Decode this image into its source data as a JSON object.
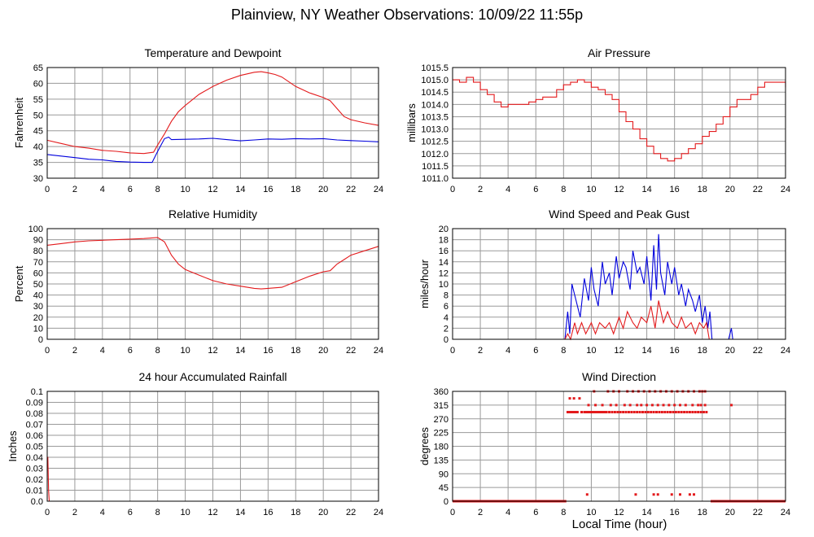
{
  "page": {
    "title": "Plainview, NY Weather Observations: 10/09/22 11:55p",
    "shared_xlabel": "Local Time (hour)"
  },
  "colors": {
    "red": "#e31a1c",
    "blue": "#0000dd",
    "grid": "#9a9a9a",
    "frame": "#000000"
  },
  "chart_data": [
    {
      "id": "temp",
      "type": "line",
      "title": "Temperature and Dewpoint",
      "xlabel": "",
      "ylabel": "Fahrenheit",
      "xlim": [
        0,
        24
      ],
      "ylim": [
        30,
        65
      ],
      "xticks": [
        0,
        2,
        4,
        6,
        8,
        10,
        12,
        14,
        16,
        18,
        20,
        22,
        24
      ],
      "yticks": [
        30,
        35,
        40,
        45,
        50,
        55,
        60,
        65
      ],
      "grid": true,
      "series": [
        {
          "color": "red",
          "x": [
            0,
            1,
            2,
            3,
            4,
            5,
            6,
            7,
            7.7,
            8,
            8.5,
            9,
            9.5,
            10,
            11,
            12,
            13,
            14,
            15,
            15.5,
            16,
            16.5,
            17,
            18,
            19,
            20,
            20.5,
            21,
            21.5,
            22,
            23,
            24
          ],
          "y": [
            42,
            41,
            40,
            39.5,
            38.8,
            38.5,
            38,
            37.8,
            38.2,
            40.5,
            44,
            48,
            51,
            53,
            56.5,
            59,
            61,
            62.5,
            63.5,
            63.7,
            63.3,
            62.8,
            62,
            59,
            57,
            55.5,
            54.5,
            52,
            49.5,
            48.5,
            47.5,
            46.7
          ]
        },
        {
          "color": "blue",
          "x": [
            0,
            1,
            2,
            3,
            4,
            5,
            6,
            7,
            7.6,
            8,
            8.5,
            8.8,
            9,
            10,
            11,
            12,
            13,
            14,
            15,
            16,
            17,
            18,
            19,
            20,
            21,
            22,
            23,
            24
          ],
          "y": [
            37.5,
            37,
            36.5,
            36,
            35.8,
            35.3,
            35.1,
            35,
            35,
            38.5,
            42.5,
            43,
            42.2,
            42.3,
            42.4,
            42.6,
            42.2,
            41.8,
            42.1,
            42.4,
            42.3,
            42.5,
            42.4,
            42.5,
            42.1,
            41.9,
            41.7,
            41.5
          ]
        }
      ]
    },
    {
      "id": "pressure",
      "type": "line",
      "title": "Air Pressure",
      "xlabel": "",
      "ylabel": "millibars",
      "xlim": [
        0,
        24
      ],
      "ylim": [
        1011.0,
        1015.5
      ],
      "xticks": [
        0,
        2,
        4,
        6,
        8,
        10,
        12,
        14,
        16,
        18,
        20,
        22,
        24
      ],
      "yticks": [
        1011.0,
        1011.5,
        1012.0,
        1012.5,
        1013.0,
        1013.5,
        1014.0,
        1014.5,
        1015.0,
        1015.5
      ],
      "tick_labels": [
        "1011.0",
        "1011.5",
        "1012.0",
        "1012.5",
        "1013.0",
        "1013.5",
        "1014.0",
        "1014.5",
        "1015.0",
        "1015.5"
      ],
      "grid": true,
      "series": [
        {
          "color": "red",
          "step": true,
          "x": [
            0,
            0.5,
            1,
            1.5,
            2,
            2.5,
            3,
            3.5,
            4,
            4.5,
            5,
            5.5,
            6,
            6.5,
            7,
            7.5,
            8,
            8.5,
            9,
            9.5,
            10,
            10.5,
            11,
            11.5,
            12,
            12.5,
            13,
            13.5,
            14,
            14.5,
            15,
            15.5,
            16,
            16.5,
            17,
            17.5,
            18,
            18.5,
            19,
            19.5,
            20,
            20.5,
            21,
            21.5,
            22,
            22.5,
            23,
            23.5,
            24
          ],
          "y": [
            1015.0,
            1014.9,
            1015.1,
            1014.9,
            1014.6,
            1014.4,
            1014.1,
            1013.9,
            1014.0,
            1014.0,
            1014.0,
            1014.1,
            1014.2,
            1014.3,
            1014.3,
            1014.6,
            1014.8,
            1014.9,
            1015.0,
            1014.9,
            1014.7,
            1014.6,
            1014.4,
            1014.2,
            1013.7,
            1013.3,
            1013.0,
            1012.6,
            1012.3,
            1012.0,
            1011.8,
            1011.7,
            1011.8,
            1012.0,
            1012.2,
            1012.4,
            1012.7,
            1012.9,
            1013.2,
            1013.5,
            1013.9,
            1014.2,
            1014.2,
            1014.4,
            1014.7,
            1014.9,
            1014.9,
            1014.9,
            1014.7
          ]
        }
      ]
    },
    {
      "id": "humidity",
      "type": "line",
      "title": "Relative Humidity",
      "xlabel": "",
      "ylabel": "Percent",
      "xlim": [
        0,
        24
      ],
      "ylim": [
        0,
        100
      ],
      "xticks": [
        0,
        2,
        4,
        6,
        8,
        10,
        12,
        14,
        16,
        18,
        20,
        22,
        24
      ],
      "yticks": [
        0,
        10,
        20,
        30,
        40,
        50,
        60,
        70,
        80,
        90,
        100
      ],
      "grid": true,
      "series": [
        {
          "color": "red",
          "x": [
            0,
            1,
            2,
            3,
            4,
            5,
            6,
            7,
            7.5,
            8,
            8.5,
            9,
            9.5,
            10,
            11,
            12,
            13,
            14,
            15,
            15.5,
            16,
            17,
            18,
            19,
            20,
            20.5,
            21,
            21.5,
            22,
            23,
            24
          ],
          "y": [
            85,
            86.5,
            88,
            89,
            89.5,
            90,
            90.5,
            91,
            91.5,
            92,
            88,
            76,
            68,
            63,
            58,
            53,
            50,
            48,
            46,
            45.5,
            46,
            47,
            52,
            57,
            61,
            62,
            68,
            72,
            76,
            80,
            84
          ]
        }
      ]
    },
    {
      "id": "wind",
      "type": "line",
      "title": "Wind Speed and Peak Gust",
      "xlabel": "",
      "ylabel": "miles/hour",
      "xlim": [
        0,
        24
      ],
      "ylim": [
        0,
        20
      ],
      "xticks": [
        0,
        2,
        4,
        6,
        8,
        10,
        12,
        14,
        16,
        18,
        20,
        22,
        24
      ],
      "yticks": [
        0,
        2,
        4,
        6,
        8,
        10,
        12,
        14,
        16,
        18,
        20
      ],
      "grid": true,
      "series": [
        {
          "color": "blue",
          "x": [
            0,
            8.1,
            8.3,
            8.45,
            8.6,
            8.9,
            9.2,
            9.5,
            9.8,
            10,
            10.2,
            10.5,
            10.8,
            11,
            11.3,
            11.5,
            11.8,
            12,
            12.3,
            12.5,
            12.8,
            13,
            13.3,
            13.5,
            13.8,
            14,
            14.3,
            14.5,
            14.7,
            14.85,
            15,
            15.3,
            15.5,
            15.8,
            16,
            16.3,
            16.5,
            16.8,
            17,
            17.3,
            17.5,
            17.8,
            18,
            18.2,
            18.4,
            18.55,
            18.7,
            19.9,
            20.1,
            20.2,
            24
          ],
          "y": [
            0,
            0,
            5,
            1,
            10,
            7,
            4,
            11,
            7,
            13,
            9,
            6,
            14,
            10,
            12,
            8,
            15,
            11,
            14,
            13,
            9,
            16,
            12,
            13,
            10,
            15,
            7,
            17,
            9,
            19,
            12,
            8,
            14,
            10,
            13,
            8,
            10,
            6,
            9,
            7,
            5,
            8,
            3,
            6,
            2,
            5,
            0,
            0,
            2,
            0,
            0
          ]
        },
        {
          "color": "red",
          "x": [
            0,
            8.1,
            8.3,
            8.5,
            8.8,
            9,
            9.3,
            9.6,
            10,
            10.3,
            10.6,
            11,
            11.3,
            11.6,
            12,
            12.3,
            12.6,
            13,
            13.3,
            13.6,
            14,
            14.3,
            14.6,
            14.85,
            15.2,
            15.5,
            15.8,
            16.2,
            16.5,
            16.8,
            17.2,
            17.5,
            17.8,
            18.1,
            18.3,
            18.5,
            24
          ],
          "y": [
            0,
            0,
            1,
            0,
            3,
            1,
            3,
            1,
            3,
            1,
            3,
            2,
            3,
            1,
            4,
            2,
            5,
            3,
            2,
            4,
            3,
            6,
            2,
            7,
            3,
            5,
            3,
            2,
            4,
            2,
            3,
            1,
            3,
            2,
            3,
            0,
            0
          ]
        }
      ]
    },
    {
      "id": "rain",
      "type": "line",
      "title": "24 hour Accumulated Rainfall",
      "xlabel": "",
      "ylabel": "Inches",
      "xlim": [
        0,
        24
      ],
      "ylim": [
        0,
        0.1
      ],
      "xticks": [
        0,
        2,
        4,
        6,
        8,
        10,
        12,
        14,
        16,
        18,
        20,
        22,
        24
      ],
      "yticks": [
        0,
        0.01,
        0.02,
        0.03,
        0.04,
        0.05,
        0.06,
        0.07,
        0.08,
        0.09,
        0.1
      ],
      "tick_labels": [
        "0.0",
        "0.01",
        "0.02",
        "0.03",
        "0.04",
        "0.05",
        "0.06",
        "0.07",
        "0.08",
        "0.09",
        "0.1"
      ],
      "grid": true,
      "series": [
        {
          "color": "red",
          "x": [
            0,
            0.05,
            0.1,
            0.15,
            24
          ],
          "y": [
            0.04,
            0.04,
            0.01,
            0,
            0
          ]
        }
      ]
    },
    {
      "id": "direction",
      "type": "scatter",
      "title": "Wind Direction",
      "xlabel": "Local Time (hour)",
      "ylabel": "degrees",
      "xlim": [
        0,
        24
      ],
      "ylim": [
        0,
        360
      ],
      "xticks": [
        0,
        2,
        4,
        6,
        8,
        10,
        12,
        14,
        16,
        18,
        20,
        22,
        24
      ],
      "yticks": [
        0,
        45,
        90,
        135,
        180,
        225,
        270,
        315,
        360
      ],
      "grid": true,
      "series": [
        {
          "color": "red",
          "x": [
            8.3,
            8.4,
            8.5,
            8.6,
            8.7,
            8.8,
            8.9,
            9.0,
            8.45,
            8.75,
            9.15,
            9.3,
            9.5,
            9.6,
            9.7,
            9.8,
            9.9,
            10.0,
            10.1,
            10.2,
            10.3,
            10.4,
            10.5,
            10.6,
            10.7,
            10.8,
            10.9,
            11.0,
            11.1,
            11.3,
            11.5,
            11.7,
            11.9,
            12.1,
            12.3,
            12.5,
            12.7,
            12.9,
            13.1,
            13.3,
            13.5,
            13.7,
            13.9,
            14.1,
            14.3,
            14.5,
            14.7,
            14.9,
            15.1,
            15.3,
            15.5,
            15.7,
            15.9,
            16.1,
            16.3,
            16.5,
            16.7,
            16.9,
            17.1,
            17.3,
            17.5,
            17.7,
            17.9,
            18.1,
            18.3,
            20.1,
            9.8,
            10.3,
            10.8,
            11.4,
            11.8,
            12.4,
            12.8,
            13.3,
            13.6,
            14.0,
            14.4,
            14.8,
            15.2,
            15.6,
            16.0,
            16.4,
            16.8,
            17.3,
            17.7,
            17.9,
            18.2,
            10.2,
            11.2,
            11.6,
            12.0,
            12.6,
            13.0,
            13.4,
            13.8,
            14.2,
            14.6,
            15.0,
            15.4,
            15.8,
            16.2,
            16.6,
            17.0,
            17.4,
            17.8,
            18.0,
            18.2,
            9.7,
            13.2,
            14.5,
            14.8,
            15.8,
            16.4,
            17.1,
            17.4
          ],
          "y": [
            292,
            292,
            292,
            292,
            292,
            292,
            292,
            292,
            337,
            337,
            337,
            292,
            292,
            292,
            292,
            292,
            292,
            292,
            292,
            292,
            292,
            292,
            292,
            292,
            292,
            292,
            292,
            292,
            292,
            292,
            292,
            292,
            292,
            292,
            292,
            292,
            292,
            292,
            292,
            292,
            292,
            292,
            292,
            292,
            292,
            292,
            292,
            292,
            292,
            292,
            292,
            292,
            292,
            292,
            292,
            292,
            292,
            292,
            292,
            292,
            292,
            292,
            292,
            292,
            292,
            315,
            315,
            315,
            315,
            315,
            315,
            315,
            315,
            315,
            315,
            315,
            315,
            315,
            315,
            315,
            315,
            315,
            315,
            315,
            315,
            315,
            315,
            360,
            360,
            360,
            360,
            360,
            360,
            360,
            360,
            360,
            360,
            360,
            360,
            360,
            360,
            360,
            360,
            360,
            360,
            360,
            360,
            22,
            22,
            22,
            22,
            22,
            22,
            22,
            22
          ]
        },
        {
          "color": "red",
          "baseline": true,
          "x": [
            0,
            8.2,
            18.6,
            24
          ],
          "y": [
            0,
            0,
            0,
            0
          ]
        }
      ]
    }
  ]
}
